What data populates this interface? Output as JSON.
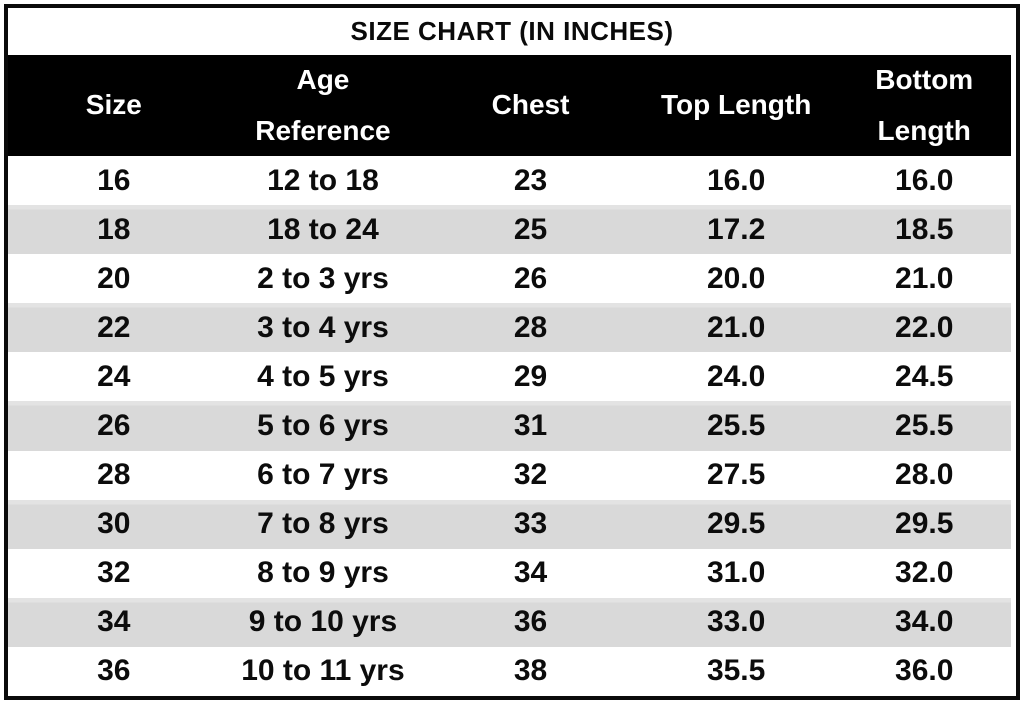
{
  "title": "SIZE CHART (IN INCHES)",
  "colors": {
    "header_bg": "#000000",
    "header_text": "#ffffff",
    "row_shaded_bg": "#d9d9d9",
    "row_plain_bg": "#ffffff",
    "border": "#0a0a0a",
    "text": "#0c0c0c"
  },
  "header": {
    "labels": [
      "Size",
      "Age\nReference",
      "Chest",
      "Top Length",
      "Bottom\nLength"
    ]
  },
  "chart_data": {
    "type": "table",
    "title": "SIZE CHART (IN INCHES)",
    "columns": [
      "Size",
      "Age Reference",
      "Chest",
      "Top Length",
      "Bottom Length"
    ],
    "rows": [
      [
        "16",
        "12 to 18",
        "23",
        "16.0",
        "16.0"
      ],
      [
        "18",
        "18 to 24",
        "25",
        "17.2",
        "18.5"
      ],
      [
        "20",
        "2 to 3 yrs",
        "26",
        "20.0",
        "21.0"
      ],
      [
        "22",
        "3 to 4 yrs",
        "28",
        "21.0",
        "22.0"
      ],
      [
        "24",
        "4 to 5 yrs",
        "29",
        "24.0",
        "24.5"
      ],
      [
        "26",
        "5 to 6 yrs",
        "31",
        "25.5",
        "25.5"
      ],
      [
        "28",
        "6 to 7 yrs",
        "32",
        "27.5",
        "28.0"
      ],
      [
        "30",
        "7 to 8 yrs",
        "33",
        "29.5",
        "29.5"
      ],
      [
        "32",
        "8 to 9 yrs",
        "34",
        "31.0",
        "32.0"
      ],
      [
        "34",
        "9 to 10 yrs",
        "36",
        "33.0",
        "34.0"
      ],
      [
        "36",
        "10 to 11 yrs",
        "38",
        "35.5",
        "36.0"
      ]
    ]
  }
}
